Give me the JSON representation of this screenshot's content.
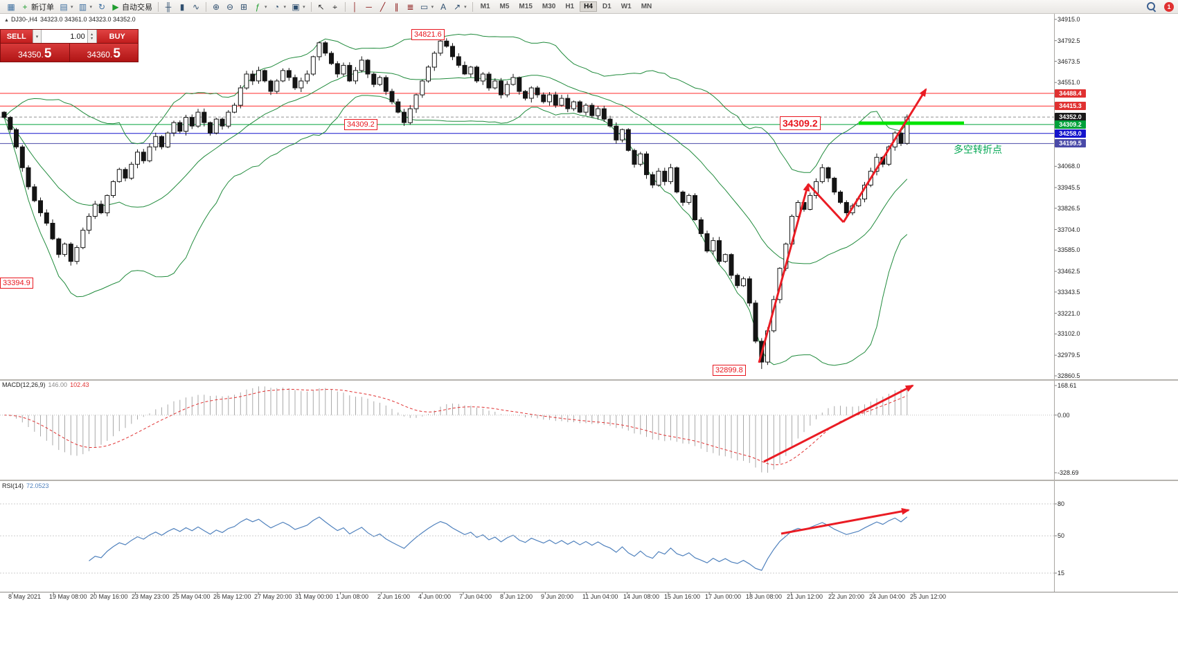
{
  "toolbar": {
    "notification_count": "1",
    "active_timeframe": "H4",
    "timeframes": [
      "M1",
      "M5",
      "M15",
      "M30",
      "H1",
      "H4",
      "D1",
      "W1",
      "MN"
    ],
    "groups": [
      [
        {
          "name": "new-chart-icon",
          "glyph": "▦",
          "color": "#3c6e9f"
        },
        {
          "name": "new-order-button",
          "glyph": "+",
          "color": "#1f9d2f",
          "label": "新订单"
        },
        {
          "name": "charts-menu-icon",
          "glyph": "▤",
          "color": "#3c6e9f",
          "caret": true
        },
        {
          "name": "profiles-icon",
          "glyph": "▥",
          "color": "#3c6e9f",
          "caret": true
        },
        {
          "name": "refresh-icon",
          "glyph": "↻",
          "color": "#3c6e9f"
        },
        {
          "name": "autotrade-button",
          "glyph": "▶",
          "color": "#1f9d2f",
          "label": "自动交易"
        }
      ],
      [
        {
          "name": "bar-chart-icon",
          "glyph": "╫",
          "color": "#2f4f6f"
        },
        {
          "name": "candlestick-icon",
          "glyph": "▮",
          "color": "#2f4f6f"
        },
        {
          "name": "line-chart-icon",
          "glyph": "∿",
          "color": "#2f4f6f"
        }
      ],
      [
        {
          "name": "zoom-in-icon",
          "glyph": "⊕",
          "color": "#2f4f6f"
        },
        {
          "name": "zoom-out-icon",
          "glyph": "⊖",
          "color": "#2f4f6f"
        },
        {
          "name": "tile-windows-icon",
          "glyph": "⊞",
          "color": "#2f4f6f"
        },
        {
          "name": "indicators-icon",
          "glyph": "ƒ",
          "color": "#1f9d2f",
          "caret": true
        },
        {
          "name": "cycles-icon",
          "glyph": "◔",
          "color": "#2f4f6f",
          "caret": true
        },
        {
          "name": "templates-icon",
          "glyph": "▣",
          "color": "#2f4f6f",
          "caret": true
        }
      ],
      [
        {
          "name": "cursor-icon",
          "glyph": "↖",
          "color": "#333333"
        },
        {
          "name": "crosshair-icon",
          "glyph": "⌖",
          "color": "#333333"
        }
      ],
      [
        {
          "name": "vertical-line-icon",
          "glyph": "│",
          "color": "#8a1616"
        },
        {
          "name": "horizontal-line-icon",
          "glyph": "─",
          "color": "#8a1616"
        },
        {
          "name": "trendline-icon",
          "glyph": "╱",
          "color": "#8a1616"
        },
        {
          "name": "channel-icon",
          "glyph": "∥",
          "color": "#8a1616"
        },
        {
          "name": "fibonacci-icon",
          "glyph": "≣",
          "color": "#8a1616"
        },
        {
          "name": "shapes-icon",
          "glyph": "▭",
          "color": "#2f4f6f",
          "caret": true
        },
        {
          "name": "text-icon",
          "glyph": "A",
          "color": "#2f4f6f"
        },
        {
          "name": "arrows-icon",
          "glyph": "↗",
          "color": "#2f4f6f",
          "caret": true
        }
      ]
    ]
  },
  "one_click": {
    "sell_label": "SELL",
    "buy_label": "BUY",
    "volume": "1.00",
    "caret": "▾",
    "spin_up": "▴",
    "spin_down": "▾",
    "sell_price": "34350.",
    "sell_price_big": "5",
    "buy_price": "34360.",
    "buy_price_big": "5"
  },
  "chart": {
    "collapse_icon": "▲",
    "title_symbol": "DJ30-,H4",
    "title_ohlc": "34323.0 34361.0 34323.0 34352.0",
    "annotations": {
      "peak": "34821.6",
      "level_left": "34309.2",
      "level_big": "34309.2",
      "left_price": "33394.9",
      "low": "32899.8",
      "turning_point": "多空转折点"
    },
    "price_axis": {
      "labels": [
        "34915.0",
        "34792.5",
        "34673.5",
        "34551.0",
        "34068.0",
        "33945.5",
        "33826.5",
        "33704.0",
        "33585.0",
        "33462.5",
        "33343.5",
        "33221.0",
        "33102.0",
        "32979.5",
        "32860.5"
      ],
      "markers": [
        {
          "value": "34488.4",
          "color": "#e03131"
        },
        {
          "value": "34415.3",
          "color": "#e03131"
        },
        {
          "value": "34352.0",
          "color": "#1a1a1a"
        },
        {
          "value": "34309.2",
          "color": "#00a13a"
        },
        {
          "value": "34258.0",
          "color": "#1414cc"
        },
        {
          "value": "34199.5",
          "color": "#4a4aa8"
        }
      ]
    },
    "time_axis": [
      "8 May 2021",
      "19 May 08:00",
      "20 May 16:00",
      "23 May 23:00",
      "25 May 04:00",
      "26 May 12:00",
      "27 May 20:00",
      "31 May 00:00",
      "1 Jun 08:00",
      "2 Jun 16:00",
      "4 Jun 00:00",
      "7 Jun 04:00",
      "8 Jun 12:00",
      "9 Jun 20:00",
      "11 Jun 04:00",
      "14 Jun 08:00",
      "15 Jun 16:00",
      "17 Jun 00:00",
      "18 Jun 08:00",
      "21 Jun 12:00",
      "22 Jun 20:00",
      "24 Jun 04:00",
      "25 Jun 12:00"
    ]
  },
  "macd": {
    "name": "MACD(12,26,9)",
    "value": "146.00",
    "signal": "102.43",
    "axis": [
      "168.61",
      "0.00",
      "-328.69"
    ]
  },
  "rsi": {
    "name": "RSI(14)",
    "value": "72.0523",
    "levels": [
      "80",
      "50",
      "15"
    ]
  },
  "chart_data": {
    "type": "candlestick",
    "symbol": "DJ30-",
    "timeframe": "H4",
    "current_ohlc": {
      "open": 34323.0,
      "high": 34361.0,
      "low": 34323.0,
      "close": 34352.0
    },
    "bid": 34350.5,
    "ask": 34360.5,
    "y_axis": {
      "min": 32860.5,
      "max": 34915.0
    },
    "closes": [
      34350,
      34280,
      34180,
      34060,
      33950,
      33870,
      33800,
      33740,
      33650,
      33560,
      33620,
      33520,
      33600,
      33700,
      33780,
      33850,
      33800,
      33900,
      33980,
      34050,
      34000,
      34080,
      34150,
      34100,
      34180,
      34240,
      34180,
      34260,
      34320,
      34270,
      34350,
      34300,
      34380,
      34320,
      34260,
      34340,
      34300,
      34380,
      34420,
      34520,
      34600,
      34560,
      34620,
      34560,
      34500,
      34560,
      34620,
      34580,
      34520,
      34560,
      34600,
      34700,
      34780,
      34720,
      34660,
      34600,
      34650,
      34560,
      34620,
      34680,
      34600,
      34540,
      34580,
      34500,
      34440,
      34380,
      34320,
      34400,
      34480,
      34560,
      34640,
      34720,
      34790,
      34760,
      34700,
      34650,
      34600,
      34640,
      34560,
      34600,
      34520,
      34560,
      34480,
      34540,
      34580,
      34500,
      34460,
      34520,
      34480,
      34440,
      34480,
      34420,
      34460,
      34400,
      34440,
      34380,
      34420,
      34360,
      34400,
      34340,
      34300,
      34220,
      34280,
      34160,
      34080,
      34140,
      34020,
      33960,
      34040,
      33980,
      34060,
      33920,
      33860,
      33900,
      33760,
      33680,
      33580,
      33640,
      33520,
      33560,
      33440,
      33380,
      33420,
      33280,
      33060,
      32940,
      33120,
      33300,
      33480,
      33620,
      33780,
      33860,
      33820,
      33900,
      33980,
      34060,
      34000,
      33920,
      33860,
      33800,
      33840,
      33880,
      33960,
      34040,
      34120,
      34080,
      34180,
      34260,
      34200,
      34352
    ],
    "special": {
      "peak_index": 72,
      "peak_high": 34821.6,
      "trough_index": 125,
      "trough_low": 32899.8
    },
    "levels": [
      {
        "price": 34488.4,
        "color": "#ff2a2a"
      },
      {
        "price": 34415.3,
        "color": "#ff2a2a"
      },
      {
        "price": 34352.0,
        "color": "#909090",
        "dash": "4,3"
      },
      {
        "price": 34309.2,
        "color": "#00a13a"
      },
      {
        "price": 34258.0,
        "color": "#1414cc"
      },
      {
        "price": 34199.5,
        "color": "#4a4aa8"
      }
    ],
    "left_price_level": 33394.9,
    "macd_axis": {
      "max": 168.61,
      "min": -328.69
    },
    "indicators": {
      "bollinger_period": 20,
      "macd": [
        12,
        26,
        9
      ],
      "rsi_period": 14
    },
    "colors": {
      "band": "#1f8a3b",
      "arrow": "#ea1c24",
      "rsi_line": "#4f81bd",
      "macd_hist": "#a9a9a9",
      "macd_signal": "#e03131",
      "candle_up": "#ffffff",
      "candle_down": "#141414",
      "candle_border": "#141414",
      "highlight_line": "#00e400"
    }
  }
}
